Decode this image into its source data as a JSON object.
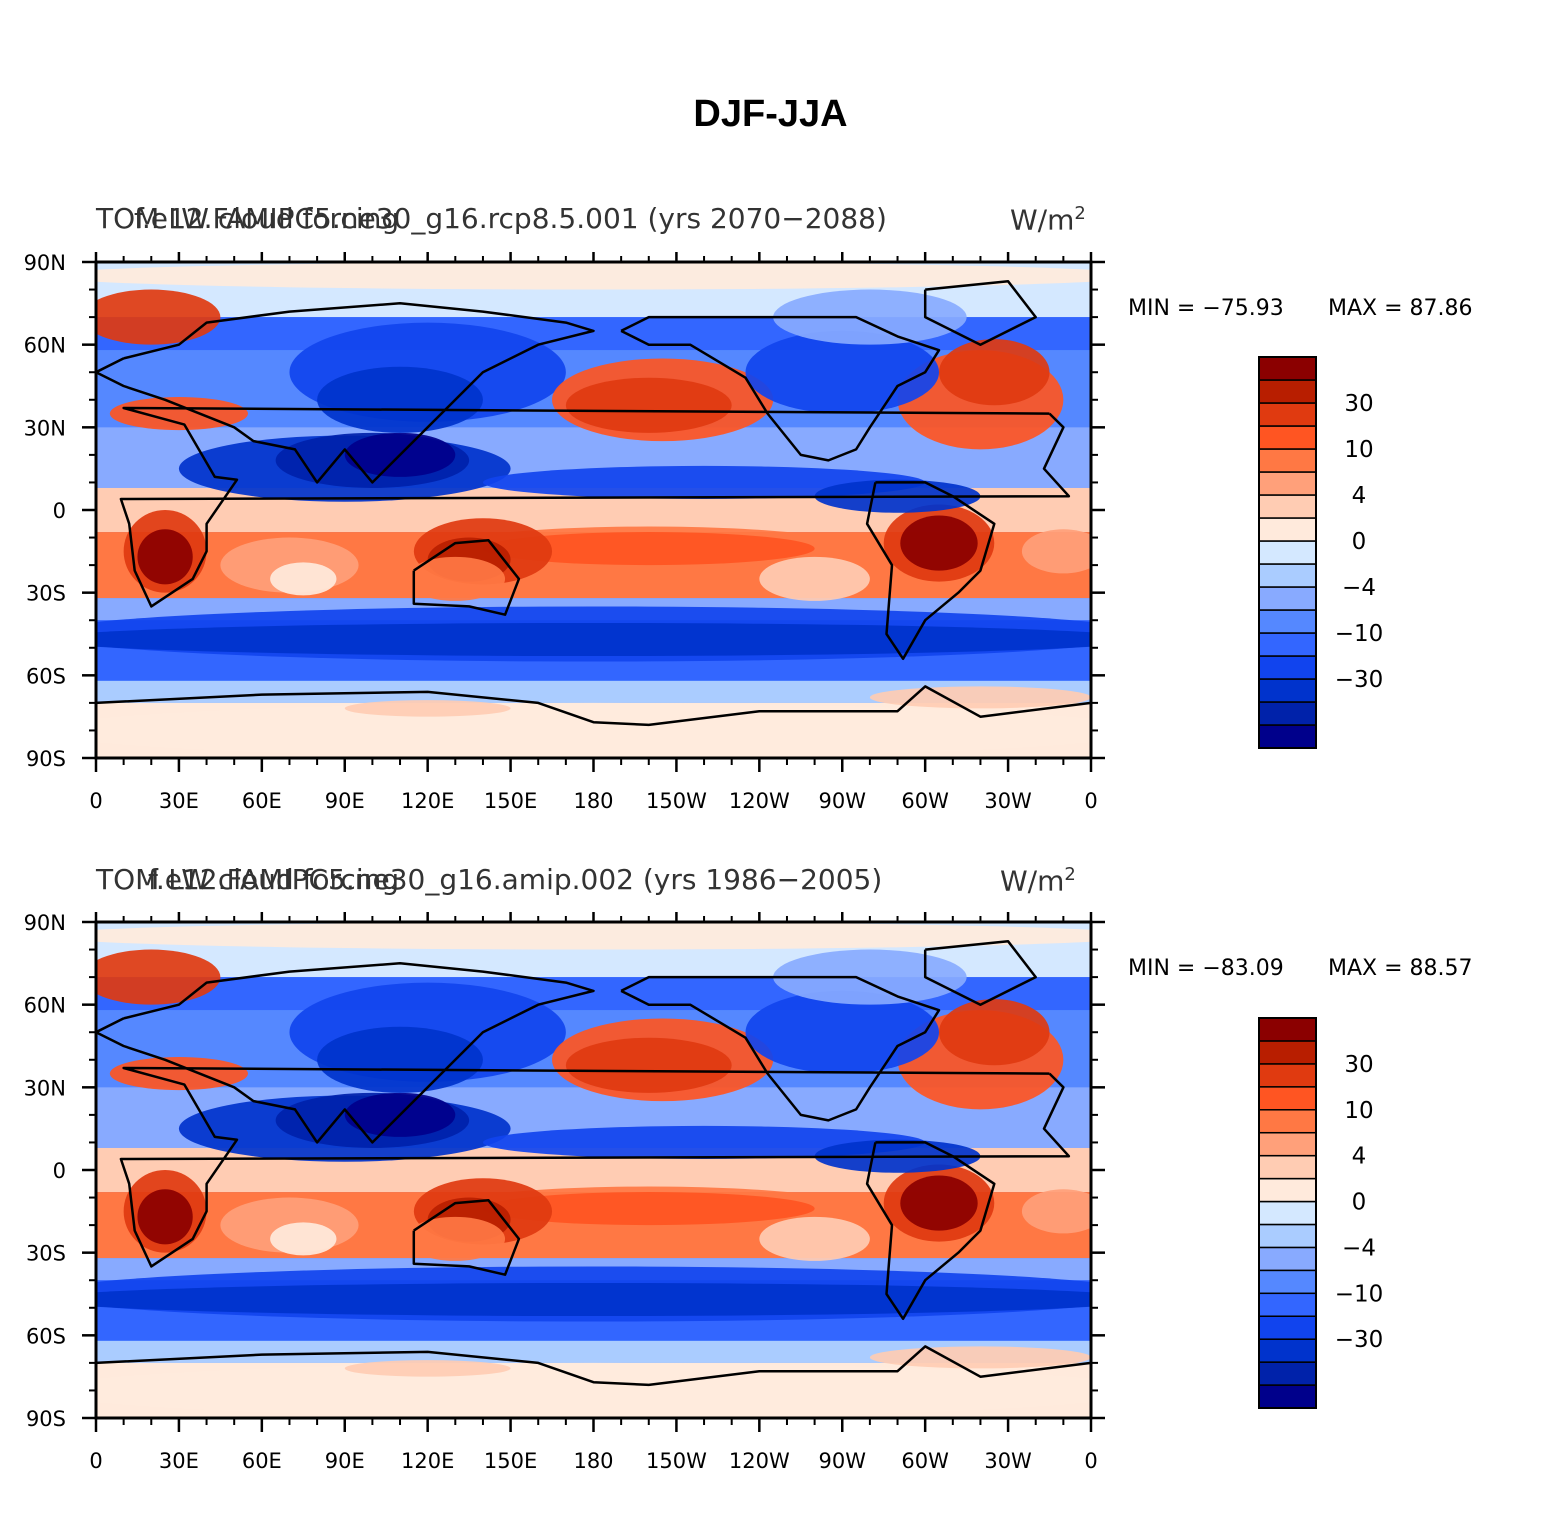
{
  "title": "DJF-JJA",
  "colors": {
    "levels": [
      "#00008B",
      "#0022AA",
      "#0033CC",
      "#1144EE",
      "#3366FF",
      "#5588FF",
      "#88AAFF",
      "#AACCFF",
      "#D4E8FF",
      "#FFEADC",
      "#FFCCB3",
      "#FFA07A",
      "#FF7844",
      "#FF5522",
      "#E03A10",
      "#B81E00",
      "#8B0000"
    ]
  },
  "colorbar_labels": [
    "30",
    "10",
    "4",
    "0",
    "−4",
    "−10",
    "−30"
  ],
  "lon_labels": [
    "0",
    "30E",
    "60E",
    "90E",
    "120E",
    "150E",
    "180",
    "150W",
    "120W",
    "90W",
    "60W",
    "30W",
    "0"
  ],
  "lat_labels": [
    "90N",
    "60N",
    "30N",
    "0",
    "30S",
    "60S",
    "90S"
  ],
  "panels": [
    {
      "id": "rcp85",
      "title_left": "TOM LW cloud forcing",
      "title_center": "f.e12.FAMIPC5.ne30_g16.rcp8.5.001 (yrs 2070−2088)",
      "units_base": "W/m",
      "units_exp": "2",
      "min_label": "MIN = −75.93",
      "max_label": "MAX =  87.86"
    },
    {
      "id": "amip",
      "title_left": "TOM LW cloud forcing",
      "title_center": "f.e12.FAMIPC5.ne30_g16.amip.002 (yrs 1986−2005)",
      "units_base": "W/m",
      "units_exp": "2",
      "min_label": "MIN = −83.09",
      "max_label": "MAX =  88.57"
    }
  ]
}
